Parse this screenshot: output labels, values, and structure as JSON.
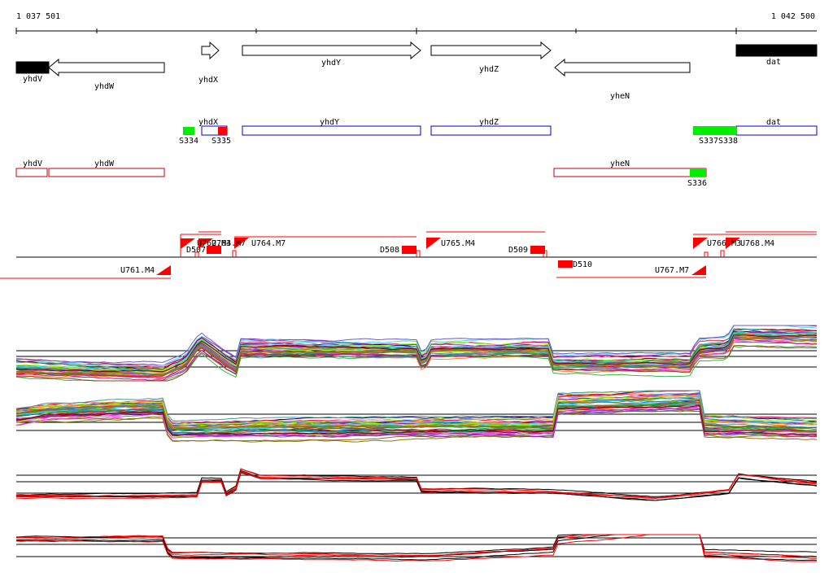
{
  "coordinates": {
    "start": "1 037 501",
    "end": "1 042 500"
  },
  "genes": [
    {
      "name": "yhdV",
      "filled": true,
      "strand": "left",
      "label_pos": "below"
    },
    {
      "name": "yhdW",
      "filled": false,
      "strand": "left",
      "label_pos": "below"
    },
    {
      "name": "yhdX",
      "filled": false,
      "strand": "right",
      "label_pos": "below"
    },
    {
      "name": "yhdY",
      "filled": false,
      "strand": "right",
      "label_pos": "inside"
    },
    {
      "name": "yhdZ",
      "filled": false,
      "strand": "right",
      "label_pos": "below"
    },
    {
      "name": "yheN",
      "filled": false,
      "strand": "left",
      "label_pos": "below"
    },
    {
      "name": "dat",
      "filled": true,
      "strand": "right",
      "label_pos": "inside"
    }
  ],
  "forward_transcripts": [
    {
      "label": "yhdX",
      "color": "#0000cc"
    },
    {
      "label": "yhdY",
      "color": "#0000cc"
    },
    {
      "label": "yhdZ",
      "color": "#0000cc"
    },
    {
      "label": "dat",
      "color": "#0000cc"
    }
  ],
  "forward_sites": [
    "S334",
    "S335",
    "S337",
    "S338"
  ],
  "reverse_transcripts": [
    {
      "label": "yhdV",
      "color": "#cc0000"
    },
    {
      "label": "yhdW",
      "color": "#cc0000"
    },
    {
      "label": "yheN",
      "color": "#cc0000"
    }
  ],
  "reverse_sites": [
    "S336"
  ],
  "upshifts": [
    "U761.M4",
    "U762.M4",
    "U763.M7",
    "U764.M7",
    "U765.M4",
    "U766.M3",
    "U767.M7",
    "U768.M4"
  ],
  "downshifts": [
    "D507",
    "D508",
    "D509",
    "D510"
  ],
  "colors": {
    "gene_outline": "#000000",
    "forward_outline": "#0000cc",
    "reverse_outline": "#cc0000",
    "site_fill": "#00ee00",
    "shift_marker": "#ff0000",
    "track_black": "#000000",
    "track_red": "#ff0000"
  },
  "expression_panels": 4
}
